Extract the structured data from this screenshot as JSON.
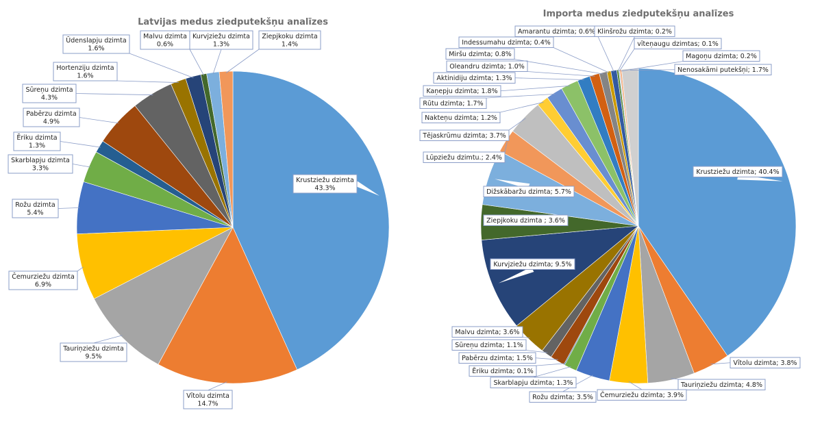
{
  "chart_data": [
    {
      "type": "pie",
      "title": "Latvijas medus ziedputekšņu analīzes",
      "label_format": "two-line",
      "slices": [
        {
          "label": "Krustziežu dzimta",
          "value": 43.3,
          "value_text": "43.3%",
          "color": "#5B9BD5"
        },
        {
          "label": "Vītolu dzimta",
          "value": 14.7,
          "value_text": "14.7%",
          "color": "#ED7D31"
        },
        {
          "label": "Tauriņziežu dzimta",
          "value": 9.5,
          "value_text": "9.5%",
          "color": "#A5A5A5"
        },
        {
          "label": "Čemurziežu dzimta",
          "value": 6.9,
          "value_text": "6.9%",
          "color": "#FFC000"
        },
        {
          "label": "Rožu dzimta",
          "value": 5.4,
          "value_text": "5.4%",
          "color": "#4472C4"
        },
        {
          "label": "Skarblapju dzimta",
          "value": 3.3,
          "value_text": "3.3%",
          "color": "#70AD47"
        },
        {
          "label": "Ēriku dzimta",
          "value": 1.3,
          "value_text": "1.3%",
          "color": "#255E91"
        },
        {
          "label": "Pabērzu dzimta",
          "value": 4.9,
          "value_text": "4.9%",
          "color": "#9E480E"
        },
        {
          "label": "Sūreņu dzimta",
          "value": 4.3,
          "value_text": "4.3%",
          "color": "#636363"
        },
        {
          "label": "Hortenziju dzimta",
          "value": 1.6,
          "value_text": "1.6%",
          "color": "#997300"
        },
        {
          "label": "Ūdenslapju dzimta",
          "value": 1.6,
          "value_text": "1.6%",
          "color": "#264478"
        },
        {
          "label": "Malvu dzimta",
          "value": 0.6,
          "value_text": "0.6%",
          "color": "#43682B"
        },
        {
          "label": "Kurvjziežu dzimta",
          "value": 1.3,
          "value_text": "1.3%",
          "color": "#7CAFDD"
        },
        {
          "label": "Ziepjkoku dzimta",
          "value": 1.4,
          "value_text": "1.4%",
          "color": "#F1975A"
        }
      ]
    },
    {
      "type": "pie",
      "title": "Importa medus ziedputekšņu analīzes",
      "label_format": "one-line",
      "slices": [
        {
          "label": "Krustziežu dzimta",
          "value": 40.4,
          "value_text": "40.4%",
          "color": "#5B9BD5"
        },
        {
          "label": "Vītolu dzimta",
          "value": 3.8,
          "value_text": "3.8%",
          "color": "#ED7D31"
        },
        {
          "label": "Tauriņziežu dzimta",
          "value": 4.8,
          "value_text": "4.8%",
          "color": "#A5A5A5"
        },
        {
          "label": "Čemurziežu dzimta",
          "value": 3.9,
          "value_text": "3.9%",
          "color": "#FFC000"
        },
        {
          "label": "Rožu dzimta",
          "value": 3.5,
          "value_text": "3.5%",
          "color": "#4472C4"
        },
        {
          "label": "Skarblapju dzimta",
          "value": 1.3,
          "value_text": "1.3%",
          "color": "#70AD47"
        },
        {
          "label": "Ēriku dzimta",
          "value": 0.1,
          "value_text": "0.1%",
          "color": "#255E91"
        },
        {
          "label": "Pabērzu dzimta",
          "value": 1.5,
          "value_text": "1.5%",
          "color": "#9E480E"
        },
        {
          "label": "Sūreņu dzimta",
          "value": 1.1,
          "value_text": "1.1%",
          "color": "#636363"
        },
        {
          "label": "Malvu dzimta",
          "value": 3.6,
          "value_text": "3.6%",
          "color": "#997300"
        },
        {
          "label": "Kurvjziežu dzimta",
          "value": 9.5,
          "value_text": "9.5%",
          "color": "#264478"
        },
        {
          "label": "Ziepjkoku dzimta ",
          "value": 3.6,
          "value_text": "3.6%",
          "color": "#43682B"
        },
        {
          "label": "Dižskābaržu dzimta",
          "value": 5.7,
          "value_text": "5.7%",
          "color": "#7CAFDD"
        },
        {
          "label": "Lūpziežu dzimtu.",
          "value": 2.4,
          "value_text": "2.4%",
          "color": "#F1975A"
        },
        {
          "label": "Tējaskrūmu dzimta",
          "value": 3.7,
          "value_text": "3.7%",
          "color": "#BFBFBF"
        },
        {
          "label": "Nakteņu dzimta",
          "value": 1.2,
          "value_text": "1.2%",
          "color": "#FFCD33"
        },
        {
          "label": "Rūtu dzimta",
          "value": 1.7,
          "value_text": "1.7%",
          "color": "#698ED0"
        },
        {
          "label": "Kaņepju dzimta",
          "value": 1.8,
          "value_text": "1.8%",
          "color": "#8CC168"
        },
        {
          "label": "Aktinidiju dzimta",
          "value": 1.3,
          "value_text": "1.3%",
          "color": "#327DC2"
        },
        {
          "label": "Oleandru dzimta",
          "value": 1.0,
          "value_text": "1.0%",
          "color": "#D26012"
        },
        {
          "label": "Miršu dzimta",
          "value": 0.8,
          "value_text": "0.8%",
          "color": "#848484"
        },
        {
          "label": "Indessumahu dzimta",
          "value": 0.4,
          "value_text": "0.4%",
          "color": "#CC9A00"
        },
        {
          "label": "Amarantu dzimta",
          "value": 0.6,
          "value_text": "0.6%",
          "color": "#335AA1"
        },
        {
          "label": "Klinšrožu dzimta",
          "value": 0.2,
          "value_text": "0.2%",
          "color": "#5A8A39"
        },
        {
          "label": "vīteņaugu dzimtas",
          "value": 0.1,
          "value_text": "0.1%",
          "color": "#A3C7E7"
        },
        {
          "label": "Magoņu dzimta",
          "value": 0.2,
          "value_text": "0.2%",
          "color": "#F6B58A"
        },
        {
          "label": "Nenosakāmi putekšņi",
          "value": 1.7,
          "value_text": "1.7%",
          "color": "#D0D0D0"
        }
      ]
    }
  ]
}
